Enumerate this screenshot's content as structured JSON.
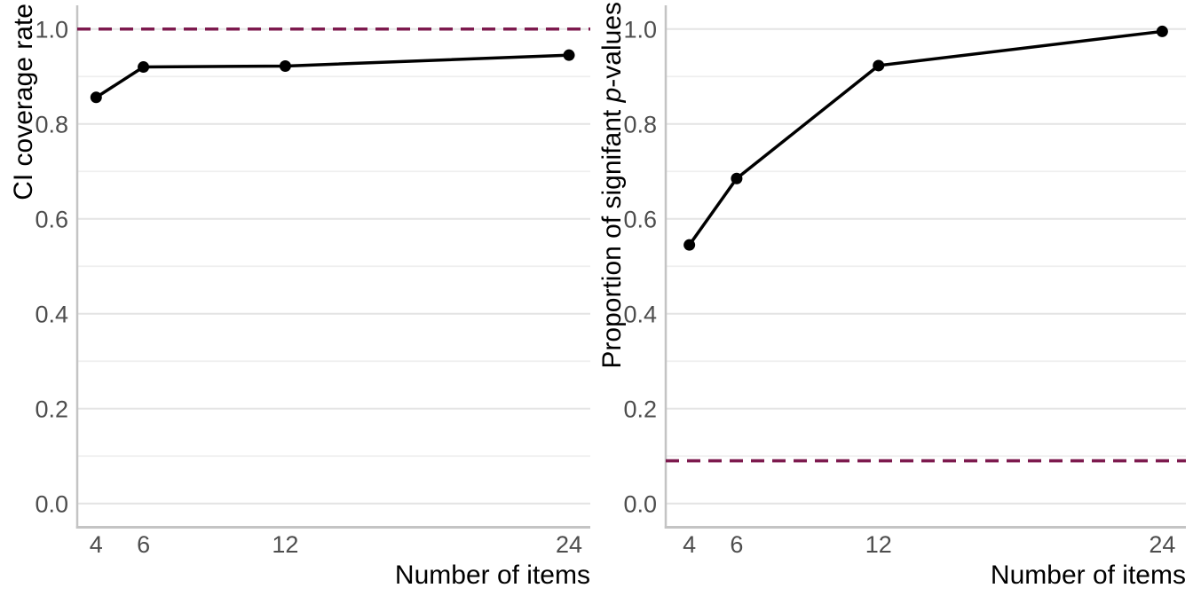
{
  "figure": {
    "background": "#ffffff",
    "colors": {
      "series_line": "#000000",
      "point": "#000000",
      "reference_line": "#7d1a4e",
      "grid_major": "#e4e4e4",
      "grid_minor": "#efefef",
      "axis_line": "#c4c4c4",
      "tick_text": "#4d4d4d",
      "title_text": "#000000"
    }
  },
  "chart_data": [
    {
      "type": "line",
      "title": "",
      "xlabel": "Number of items",
      "ylabel": "CI coverage rate",
      "ylabel_parts": [
        {
          "t": "CI coverage rate",
          "i": false
        }
      ],
      "x_tick_labels": [
        "4",
        "6",
        "12",
        "24"
      ],
      "x_tick_values": [
        4,
        6,
        12,
        24
      ],
      "y_tick_labels": [
        "0.0",
        "0.2",
        "0.4",
        "0.6",
        "0.8",
        "1.0"
      ],
      "y_tick_values": [
        0.0,
        0.2,
        0.4,
        0.6,
        0.8,
        1.0
      ],
      "y_minor_values": [
        0.1,
        0.3,
        0.5,
        0.7,
        0.9
      ],
      "x": [
        4,
        6,
        12,
        24
      ],
      "y": [
        0.856,
        0.92,
        0.922,
        0.945
      ],
      "reference_hline": 1.0,
      "xlim": [
        3.2,
        24.9
      ],
      "ylim": [
        -0.05,
        1.05
      ],
      "grid": "horizontal-only",
      "legend": "none"
    },
    {
      "type": "line",
      "title": "",
      "xlabel": "Number of items",
      "ylabel": "Proportion of signifant p-values",
      "ylabel_parts": [
        {
          "t": "Proportion of signifant ",
          "i": false
        },
        {
          "t": "p",
          "i": true
        },
        {
          "t": "-values",
          "i": false
        }
      ],
      "x_tick_labels": [
        "4",
        "6",
        "12",
        "24"
      ],
      "x_tick_values": [
        4,
        6,
        12,
        24
      ],
      "y_tick_labels": [
        "0.0",
        "0.2",
        "0.4",
        "0.6",
        "0.8",
        "1.0"
      ],
      "y_tick_values": [
        0.0,
        0.2,
        0.4,
        0.6,
        0.8,
        1.0
      ],
      "y_minor_values": [
        0.1,
        0.3,
        0.5,
        0.7,
        0.9
      ],
      "x": [
        4,
        6,
        12,
        24
      ],
      "y": [
        0.545,
        0.685,
        0.923,
        0.995
      ],
      "reference_hline": 0.09,
      "xlim": [
        3.0,
        25.0
      ],
      "ylim": [
        -0.05,
        1.05
      ],
      "grid": "horizontal-only",
      "legend": "none"
    }
  ]
}
